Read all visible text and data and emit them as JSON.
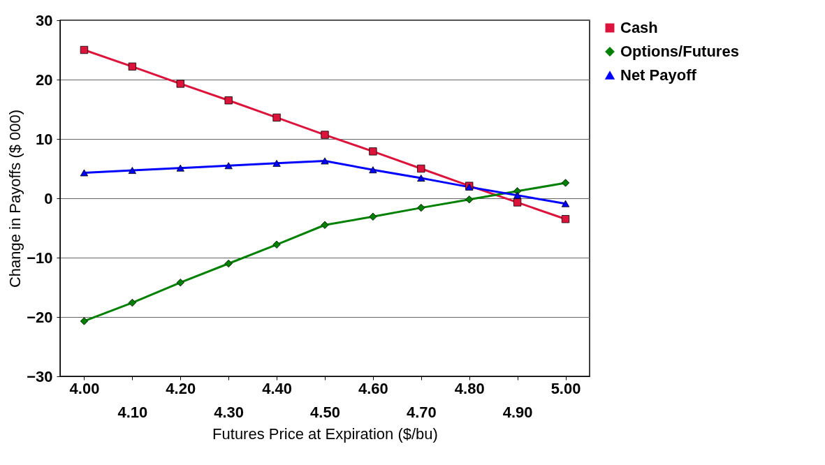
{
  "chart_data": {
    "type": "line",
    "xlabel": "Futures Price at Expiration ($/bu)",
    "ylabel": "Change in Payoffs ($ 000)",
    "categories": [
      "4.00",
      "4.10",
      "4.20",
      "4.30",
      "4.40",
      "4.50",
      "4.60",
      "4.70",
      "4.80",
      "4.90",
      "5.00"
    ],
    "series": [
      {
        "name": "Cash",
        "color": "#dc143c",
        "marker": "square",
        "values": [
          25,
          22.2,
          19.3,
          16.5,
          13.6,
          10.7,
          7.9,
          5.0,
          2.1,
          -0.7,
          -3.5
        ]
      },
      {
        "name": "Options/Futures",
        "color": "#008000",
        "marker": "diamond",
        "values": [
          -20.7,
          -17.6,
          -14.2,
          -11.0,
          -7.8,
          -4.5,
          -3.1,
          -1.6,
          -0.2,
          1.2,
          2.6
        ]
      },
      {
        "name": "Net Payoff",
        "color": "#0000ff",
        "marker": "triangle",
        "values": [
          4.3,
          4.7,
          5.1,
          5.5,
          5.9,
          6.3,
          4.8,
          3.4,
          1.9,
          0.5,
          -0.9
        ]
      }
    ],
    "ylim": [
      -30,
      30
    ],
    "yticks": [
      -30,
      -20,
      -10,
      0,
      10,
      20,
      30
    ],
    "grid": "y",
    "legend": "right",
    "line_style": "solid"
  }
}
